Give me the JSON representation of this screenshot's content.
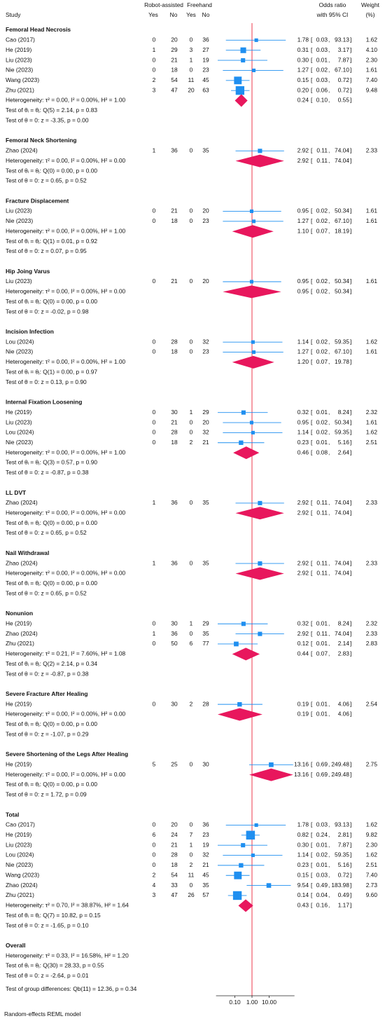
{
  "chart_data": {
    "type": "forest",
    "headers": {
      "study": "Study",
      "group_a": "Robot-assisted",
      "group_b": "Freehand",
      "yes": "Yes",
      "no": "No",
      "effect": "Odds ratio",
      "effect_sub": "with 95% CI",
      "weight": "Weight",
      "weight_sub": "(%)"
    },
    "footer": "Random-effects REML model",
    "square_color": "#1f8ff0",
    "diamond_color": "#e8175d",
    "null_line_color": "#f05a6a",
    "log_scale": true,
    "xlim": [
      0.008,
      300
    ],
    "xticks": [
      {
        "value": 0.1,
        "label": "0.10"
      },
      {
        "value": 1,
        "label": "1.00"
      },
      {
        "value": 10,
        "label": "10.00"
      }
    ],
    "groups": [
      {
        "title": "Femoral Head Necrosis",
        "studies": [
          {
            "study": "Cao (2017)",
            "counts": [
              0,
              20,
              0,
              36
            ],
            "or": "1.78",
            "lo": "0.03",
            "hi": "93.13",
            "weight": "1.62"
          },
          {
            "study": "He (2019)",
            "counts": [
              1,
              29,
              3,
              27
            ],
            "or": "0.31",
            "lo": "0.03",
            "hi": "3.17",
            "weight": "4.10"
          },
          {
            "study": "Liu (2023)",
            "counts": [
              0,
              21,
              1,
              19
            ],
            "or": "0.30",
            "lo": "0.01",
            "hi": "7.87",
            "weight": "2.30"
          },
          {
            "study": "Nie (2023)",
            "counts": [
              0,
              18,
              0,
              23
            ],
            "or": "1.27",
            "lo": "0.02",
            "hi": "67.10",
            "weight": "1.61"
          },
          {
            "study": "Wang (2023)",
            "counts": [
              2,
              54,
              11,
              45
            ],
            "or": "0.15",
            "lo": "0.03",
            "hi": "0.72",
            "weight": "7.40"
          },
          {
            "study": "Zhu (2021)",
            "counts": [
              3,
              47,
              20,
              63
            ],
            "or": "0.20",
            "lo": "0.06",
            "hi": "0.72",
            "weight": "9.48"
          }
        ],
        "heterogeneity": "Heterogeneity: τ² = 0.00, I² = 0.00%, H² = 1.00",
        "summary": {
          "or": "0.24",
          "lo": "0.10",
          "hi": "0.55"
        },
        "test_q": "Test of θᵢ = θⱼ: Q(5) = 2.14, p = 0.83",
        "test_z": "Test of θ = 0: z = -3.35, p = 0.00"
      },
      {
        "title": "Femoral Neck Shortening",
        "studies": [
          {
            "study": "Zhao (2024)",
            "counts": [
              1,
              36,
              0,
              35
            ],
            "or": "2.92",
            "lo": "0.11",
            "hi": "74.04",
            "weight": "2.33"
          }
        ],
        "heterogeneity": "Heterogeneity: τ² = 0.00, I² = 0.00%, H² = 0.00",
        "summary": {
          "or": "2.92",
          "lo": "0.11",
          "hi": "74.04"
        },
        "test_q": "Test of θᵢ = θⱼ: Q(0) = 0.00, p = 0.00",
        "test_z": "Test of θ = 0: z = 0.65, p = 0.52"
      },
      {
        "title": "Fracture Displacement",
        "studies": [
          {
            "study": "Liu (2023)",
            "counts": [
              0,
              21,
              0,
              20
            ],
            "or": "0.95",
            "lo": "0.02",
            "hi": "50.34",
            "weight": "1.61"
          },
          {
            "study": "Nie (2023)",
            "counts": [
              0,
              18,
              0,
              23
            ],
            "or": "1.27",
            "lo": "0.02",
            "hi": "67.10",
            "weight": "1.61"
          }
        ],
        "heterogeneity": "Heterogeneity: τ² = 0.00, I² = 0.00%, H² = 1.00",
        "summary": {
          "or": "1.10",
          "lo": "0.07",
          "hi": "18.19"
        },
        "test_q": "Test of θᵢ = θⱼ: Q(1) = 0.01, p = 0.92",
        "test_z": "Test of θ = 0: z = 0.07, p = 0.95"
      },
      {
        "title": "Hip Joing Varus",
        "studies": [
          {
            "study": "Liu (2023)",
            "counts": [
              0,
              21,
              0,
              20
            ],
            "or": "0.95",
            "lo": "0.02",
            "hi": "50.34",
            "weight": "1.61"
          }
        ],
        "heterogeneity": "Heterogeneity: τ² = 0.00, I² = 0.00%, H² = 0.00",
        "summary": {
          "or": "0.95",
          "lo": "0.02",
          "hi": "50.34"
        },
        "test_q": "Test of θᵢ = θⱼ: Q(0) = 0.00, p = 0.00",
        "test_z": "Test of θ = 0: z = -0.02, p = 0.98"
      },
      {
        "title": "Incision Infection",
        "studies": [
          {
            "study": "Lou (2024)",
            "counts": [
              0,
              28,
              0,
              32
            ],
            "or": "1.14",
            "lo": "0.02",
            "hi": "59.35",
            "weight": "1.62"
          },
          {
            "study": "Nie (2023)",
            "counts": [
              0,
              18,
              0,
              23
            ],
            "or": "1.27",
            "lo": "0.02",
            "hi": "67.10",
            "weight": "1.61"
          }
        ],
        "heterogeneity": "Heterogeneity: τ² = 0.00, I² = 0.00%, H² = 1.00",
        "summary": {
          "or": "1.20",
          "lo": "0.07",
          "hi": "19.78"
        },
        "test_q": "Test of θᵢ = θⱼ: Q(1) = 0.00, p = 0.97",
        "test_z": "Test of θ = 0: z = 0.13, p = 0.90"
      },
      {
        "title": "Internal Fixation Loosening",
        "studies": [
          {
            "study": "He (2019)",
            "counts": [
              0,
              30,
              1,
              29
            ],
            "or": "0.32",
            "lo": "0.01",
            "hi": "8.24",
            "weight": "2.32"
          },
          {
            "study": "Liu (2023)",
            "counts": [
              0,
              21,
              0,
              20
            ],
            "or": "0.95",
            "lo": "0.02",
            "hi": "50.34",
            "weight": "1.61"
          },
          {
            "study": "Lou (2024)",
            "counts": [
              0,
              28,
              0,
              32
            ],
            "or": "1.14",
            "lo": "0.02",
            "hi": "59.35",
            "weight": "1.62"
          },
          {
            "study": "Nie (2023)",
            "counts": [
              0,
              18,
              2,
              21
            ],
            "or": "0.23",
            "lo": "0.01",
            "hi": "5.16",
            "weight": "2.51"
          }
        ],
        "heterogeneity": "Heterogeneity: τ² = 0.00, I² = 0.00%, H² = 1.00",
        "summary": {
          "or": "0.46",
          "lo": "0.08",
          "hi": "2.64"
        },
        "test_q": "Test of θᵢ = θⱼ: Q(3) = 0.57, p = 0.90",
        "test_z": "Test of θ = 0: z = -0.87, p = 0.38"
      },
      {
        "title": "LL DVT",
        "studies": [
          {
            "study": "Zhao (2024)",
            "counts": [
              1,
              36,
              0,
              35
            ],
            "or": "2.92",
            "lo": "0.11",
            "hi": "74.04",
            "weight": "2.33"
          }
        ],
        "heterogeneity": "Heterogeneity: τ² = 0.00, I² = 0.00%, H² = 0.00",
        "summary": {
          "or": "2.92",
          "lo": "0.11",
          "hi": "74.04"
        },
        "test_q": "Test of θᵢ = θⱼ: Q(0) = 0.00, p = 0.00",
        "test_z": "Test of θ = 0: z = 0.65, p = 0.52"
      },
      {
        "title": "Nail Withdrawal",
        "studies": [
          {
            "study": "Zhao (2024)",
            "counts": [
              1,
              36,
              0,
              35
            ],
            "or": "2.92",
            "lo": "0.11",
            "hi": "74.04",
            "weight": "2.33"
          }
        ],
        "heterogeneity": "Heterogeneity: τ² = 0.00, I² = 0.00%, H² = 0.00",
        "summary": {
          "or": "2.92",
          "lo": "0.11",
          "hi": "74.04"
        },
        "test_q": "Test of θᵢ = θⱼ: Q(0) = 0.00, p = 0.00",
        "test_z": "Test of θ = 0: z = 0.65, p = 0.52"
      },
      {
        "title": "Nonunion",
        "studies": [
          {
            "study": "He (2019)",
            "counts": [
              0,
              30,
              1,
              29
            ],
            "or": "0.32",
            "lo": "0.01",
            "hi": "8.24",
            "weight": "2.32"
          },
          {
            "study": "Zhao (2024)",
            "counts": [
              1,
              36,
              0,
              35
            ],
            "or": "2.92",
            "lo": "0.11",
            "hi": "74.04",
            "weight": "2.33"
          },
          {
            "study": "Zhu (2021)",
            "counts": [
              0,
              50,
              6,
              77
            ],
            "or": "0.12",
            "lo": "0.01",
            "hi": "2.14",
            "weight": "2.83"
          }
        ],
        "heterogeneity": "Heterogeneity: τ² = 0.21, I² = 7.60%, H² = 1.08",
        "summary": {
          "or": "0.44",
          "lo": "0.07",
          "hi": "2.83"
        },
        "test_q": "Test of θᵢ = θⱼ: Q(2) = 2.14, p = 0.34",
        "test_z": "Test of θ = 0: z = -0.87, p = 0.38"
      },
      {
        "title": "Severe Fracture After Healing",
        "studies": [
          {
            "study": "He (2019)",
            "counts": [
              0,
              30,
              2,
              28
            ],
            "or": "0.19",
            "lo": "0.01",
            "hi": "4.06",
            "weight": "2.54"
          }
        ],
        "heterogeneity": "Heterogeneity: τ² = 0.00, I² = 0.00%, H² = 0.00",
        "summary": {
          "or": "0.19",
          "lo": "0.01",
          "hi": "4.06"
        },
        "test_q": "Test of θᵢ = θⱼ: Q(0) = 0.00, p = 0.00",
        "test_z": "Test of θ = 0: z = -1.07, p = 0.29"
      },
      {
        "title": "Severe Shortening of the Legs After Healing",
        "studies": [
          {
            "study": "He (2019)",
            "counts": [
              5,
              25,
              0,
              30
            ],
            "or": "13.16",
            "lo": "0.69",
            "hi": "249.48",
            "weight": "2.75"
          }
        ],
        "heterogeneity": "Heterogeneity: τ² = 0.00, I² = 0.00%, H² = 0.00",
        "summary": {
          "or": "13.16",
          "lo": "0.69",
          "hi": "249.48"
        },
        "test_q": "Test of θᵢ = θⱼ: Q(0) = 0.00, p = 0.00",
        "test_z": "Test of θ = 0: z = 1.72, p = 0.09"
      },
      {
        "title": "Total",
        "studies": [
          {
            "study": "Cao (2017)",
            "counts": [
              0,
              20,
              0,
              36
            ],
            "or": "1.78",
            "lo": "0.03",
            "hi": "93.13",
            "weight": "1.62"
          },
          {
            "study": "He (2019)",
            "counts": [
              6,
              24,
              7,
              23
            ],
            "or": "0.82",
            "lo": "0.24",
            "hi": "2.81",
            "weight": "9.82"
          },
          {
            "study": "Liu (2023)",
            "counts": [
              0,
              21,
              1,
              19
            ],
            "or": "0.30",
            "lo": "0.01",
            "hi": "7.87",
            "weight": "2.30"
          },
          {
            "study": "Lou (2024)",
            "counts": [
              0,
              28,
              0,
              32
            ],
            "or": "1.14",
            "lo": "0.02",
            "hi": "59.35",
            "weight": "1.62"
          },
          {
            "study": "Nie (2023)",
            "counts": [
              0,
              18,
              2,
              21
            ],
            "or": "0.23",
            "lo": "0.01",
            "hi": "5.16",
            "weight": "2.51"
          },
          {
            "study": "Wang (2023)",
            "counts": [
              2,
              54,
              11,
              45
            ],
            "or": "0.15",
            "lo": "0.03",
            "hi": "0.72",
            "weight": "7.40"
          },
          {
            "study": "Zhao (2024)",
            "counts": [
              4,
              33,
              0,
              35
            ],
            "or": "9.54",
            "lo": "0.49",
            "hi": "183.98",
            "weight": "2.73"
          },
          {
            "study": "Zhu (2021)",
            "counts": [
              3,
              47,
              26,
              57
            ],
            "or": "0.14",
            "lo": "0.04",
            "hi": "0.49",
            "weight": "9.60"
          }
        ],
        "heterogeneity": "Heterogeneity: τ² = 0.70, I² = 38.87%, H² = 1.64",
        "summary": {
          "or": "0.43",
          "lo": "0.16",
          "hi": "1.17"
        },
        "test_q": "Test of θᵢ = θⱼ: Q(7) = 10.82, p = 0.15",
        "test_z": "Test of θ = 0: z = -1.65, p = 0.10"
      }
    ],
    "overall": {
      "title": "Overall",
      "heterogeneity": "Heterogeneity: τ² = 0.33, I² = 16.58%, H² = 1.20",
      "test_q": "Test of θᵢ = θⱼ: Q(30) = 28.33, p = 0.55",
      "test_z": "Test of θ = 0: z = -2.64, p = 0.01",
      "test_groups": "Test of group differences: Qb(11) = 12.36, p = 0.34"
    }
  }
}
